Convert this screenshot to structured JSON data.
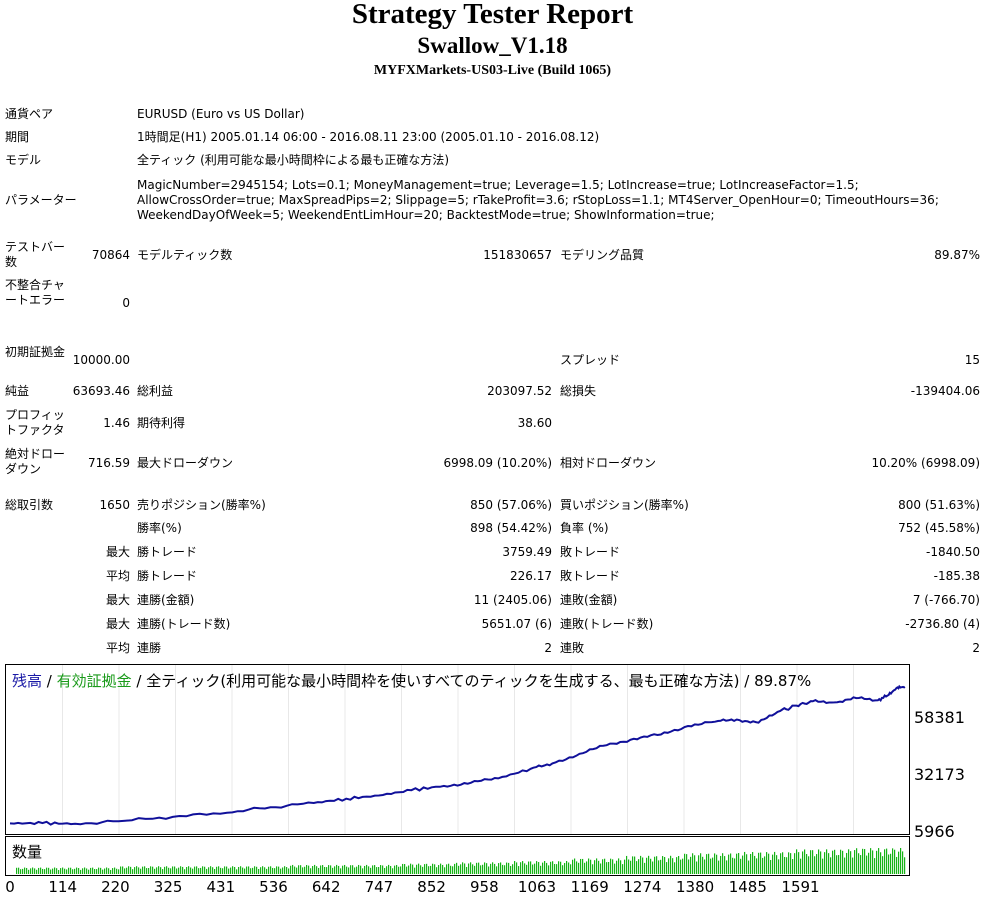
{
  "header": {
    "title": "Strategy Tester Report",
    "ea_name": "Swallow_V1.18",
    "server": "MYFXMarkets-US03-Live (Build 1065)"
  },
  "info": {
    "pair_label": "通貨ペア",
    "pair_value": "EURUSD (Euro vs US Dollar)",
    "period_label": "期間",
    "period_value": "1時間足(H1) 2005.01.14 06:00 - 2016.08.11 23:00 (2005.01.10 - 2016.08.12)",
    "model_label": "モデル",
    "model_value": "全ティック (利用可能な最小時間枠による最も正確な方法)",
    "params_label": "パラメーター",
    "params_value": "MagicNumber=2945154; Lots=0.1; MoneyManagement=true; Leverage=1.5; LotIncrease=true; LotIncreaseFactor=1.5; AllowCrossOrder=true; MaxSpreadPips=2; Slippage=5; rTakeProfit=3.6; rStopLoss=1.1; MT4Server_OpenHour=0; TimeoutHours=36; WeekendDayOfWeek=5; WeekendEntLimHour=20; BacktestMode=true; ShowInformation=true;"
  },
  "stats": {
    "test_bars_label": "テストバー数",
    "test_bars": "70864",
    "model_ticks_label": "モデルティック数",
    "model_ticks": "151830657",
    "model_quality_label": "モデリング品質",
    "model_quality": "89.87%",
    "mismatch_label": "不整合チャートエラー",
    "mismatch": "0",
    "initial_deposit_label": "初期証拠金",
    "initial_deposit": "10000.00",
    "spread_label": "スプレッド",
    "spread": "15",
    "net_profit_label": "純益",
    "net_profit": "63693.46",
    "gross_profit_label": "総利益",
    "gross_profit": "203097.52",
    "gross_loss_label": "総損失",
    "gross_loss": "-139404.06",
    "profit_factor_label": "プロフィットファクタ",
    "profit_factor": "1.46",
    "expected_payoff_label": "期待利得",
    "expected_payoff": "38.60",
    "abs_dd_label": "絶対ドローダウン",
    "abs_dd": "716.59",
    "max_dd_label": "最大ドローダウン",
    "max_dd": "6998.09 (10.20%)",
    "rel_dd_label": "相対ドローダウン",
    "rel_dd": "10.20% (6998.09)",
    "total_trades_label": "総取引数",
    "total_trades": "1650",
    "short_label": "売りポジション(勝率%)",
    "short": "850 (57.06%)",
    "long_label": "買いポジション(勝率%)",
    "long": "800 (51.63%)",
    "win_rate_label": "勝率(%)",
    "win_rate": "898 (54.42%)",
    "loss_rate_label": "負率 (%)",
    "loss_rate": "752 (45.58%)",
    "max_label": "最大",
    "avg_label": "平均",
    "win_trade_label": "勝トレード",
    "loss_trade_label": "敗トレード",
    "largest_win": "3759.49",
    "largest_loss": "-1840.50",
    "avg_win": "226.17",
    "avg_loss": "-185.38",
    "consec_win_amt_label": "連勝(金額)",
    "consec_win_amt": "11 (2405.06)",
    "consec_loss_amt_label": "連敗(金額)",
    "consec_loss_amt": "7 (-766.70)",
    "consec_win_cnt_label": "連勝(トレード数)",
    "consec_win_cnt": "5651.07 (6)",
    "consec_loss_cnt_label": "連敗(トレード数)",
    "consec_loss_cnt": "-2736.80 (4)",
    "avg_consec_win_label": "連勝",
    "avg_consec_win": "2",
    "avg_consec_loss_label": "連敗",
    "avg_consec_loss": "2"
  },
  "chart_data": {
    "type": "line",
    "legend_balance": "残高",
    "legend_equity": "有効証拠金",
    "legend_sep1": " / ",
    "legend_rest": " / 全ティック(利用可能な最小時間枠を使いすべてのティックを生成する、最も正確な方法) / 89.87%",
    "volume_label": "数量",
    "ylim": [
      5966,
      73693
    ],
    "y_ticks": [
      "58381",
      "32173",
      "5966"
    ],
    "x_ticks": [
      "0",
      "114",
      "220",
      "325",
      "431",
      "536",
      "642",
      "747",
      "852",
      "958",
      "1063",
      "1169",
      "1274",
      "1380",
      "1485",
      "1591"
    ],
    "xlim": [
      0,
      1650
    ],
    "series": [
      {
        "name": "残高",
        "x": [
          0,
          60,
          120,
          200,
          300,
          400,
          480,
          560,
          620,
          680,
          740,
          800,
          850,
          900,
          960,
          1000,
          1050,
          1100,
          1150,
          1200,
          1250,
          1300,
          1340,
          1380,
          1420,
          1450,
          1480,
          1520,
          1560,
          1600,
          1620,
          1636,
          1650
        ],
        "y": [
          10000,
          10100,
          9800,
          11000,
          13000,
          15000,
          17500,
          19500,
          21500,
          23000,
          25500,
          27500,
          29000,
          31000,
          35500,
          38000,
          42500,
          46500,
          49500,
          51500,
          55500,
          57500,
          58500,
          57000,
          62500,
          65000,
          67000,
          66500,
          68500,
          67500,
          70000,
          73500,
          73693
        ]
      }
    ],
    "volume": {
      "x_end": 1650,
      "values": [
        0.25,
        0.25,
        0.3,
        0.3,
        0.3,
        0.35,
        0.35,
        0.4,
        0.45,
        0.5,
        0.6,
        0.7,
        0.8,
        0.85,
        0.95,
        1.0
      ]
    }
  }
}
